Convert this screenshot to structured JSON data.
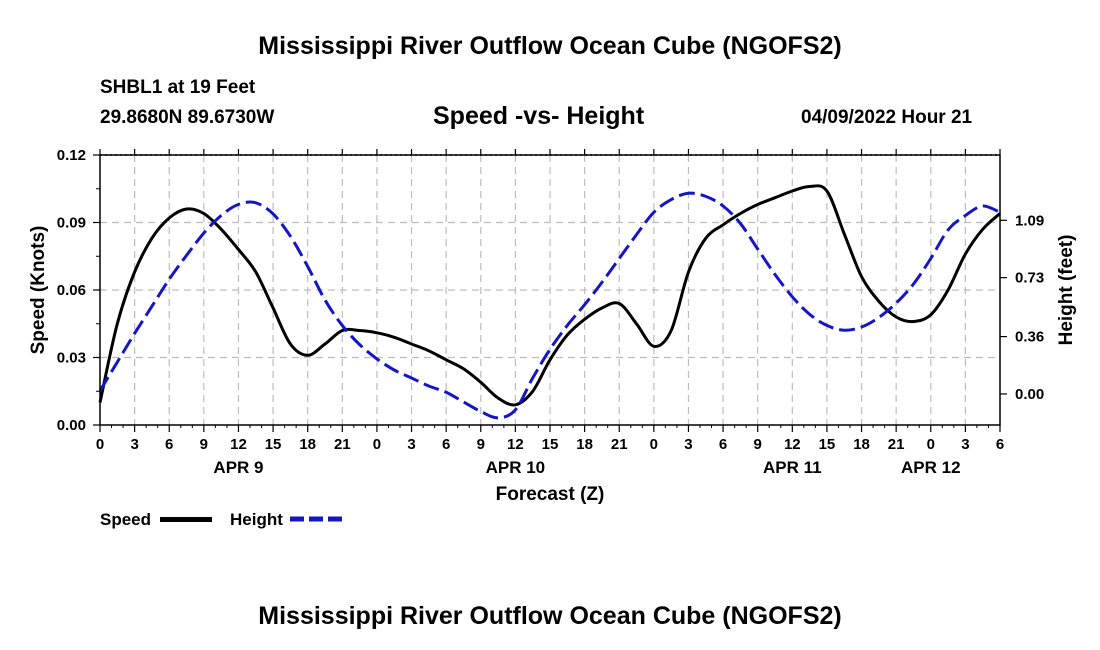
{
  "page": {
    "title": "Mississippi River Outflow Ocean Cube (NGOFS2)",
    "station": "SHBL1 at 19 Feet",
    "coords": "29.8680N  89.6730W",
    "subtitle": "Speed -vs- Height",
    "datetime": "04/09/2022 Hour 21",
    "footer_title": "Mississippi River Outflow Ocean Cube (NGOFS2)"
  },
  "legend": {
    "speed_label": "Speed",
    "height_label": "Height"
  },
  "colors": {
    "speed": "#000000",
    "height": "#1515c8",
    "grid": "#bdbdbd"
  },
  "chart_data": {
    "type": "line",
    "title": "Speed -vs- Height",
    "xlabel": "Forecast (Z)",
    "ylabel": "Speed (Knots)",
    "y2label": "Height (feet)",
    "xlim": [
      0,
      78
    ],
    "ylim": [
      0,
      0.12
    ],
    "y2lim": [
      -0.195,
      1.5
    ],
    "x_unit": "hours from 04/09 00Z",
    "x_ticks": [
      0,
      3,
      6,
      9,
      12,
      15,
      18,
      21,
      24,
      27,
      30,
      33,
      36,
      39,
      42,
      45,
      48,
      51,
      54,
      57,
      60,
      63,
      66,
      69,
      72,
      75,
      78
    ],
    "x_tick_labels": [
      "0",
      "3",
      "6",
      "9",
      "12",
      "15",
      "18",
      "21",
      "0",
      "3",
      "6",
      "9",
      "12",
      "15",
      "18",
      "21",
      "0",
      "3",
      "6",
      "9",
      "12",
      "15",
      "18",
      "21",
      "0",
      "3",
      "6"
    ],
    "day_labels": [
      {
        "label": "APR 9",
        "x": 12
      },
      {
        "label": "APR 10",
        "x": 36
      },
      {
        "label": "APR 11",
        "x": 60
      },
      {
        "label": "APR 12",
        "x": 72
      }
    ],
    "y_ticks": [
      0,
      0.03,
      0.06,
      0.09,
      0.12
    ],
    "y_tick_labels": [
      "0.00",
      "0.03",
      "0.06",
      "0.09",
      "0.12"
    ],
    "y2_ticks": [
      0,
      0.36,
      0.73,
      1.09
    ],
    "y2_tick_labels": [
      "0.00",
      "0.36",
      "0.73",
      "1.09"
    ],
    "series": [
      {
        "name": "Speed",
        "axis": "left",
        "style": "solid",
        "x": [
          0,
          1.5,
          3,
          4.5,
          6,
          7.5,
          9,
          10.5,
          12,
          13.5,
          15,
          16.5,
          18,
          19.5,
          21,
          22.5,
          24,
          25.5,
          27,
          28.5,
          30,
          31.5,
          33,
          34.5,
          36,
          37.5,
          39,
          40.5,
          42,
          43.5,
          45,
          46.5,
          48,
          49.5,
          51,
          52.5,
          54,
          55.5,
          57,
          58.5,
          60,
          61.5,
          63,
          64.5,
          66,
          67.5,
          69,
          70.5,
          72,
          73.5,
          75,
          76.5,
          78
        ],
        "values": [
          0.01,
          0.045,
          0.068,
          0.083,
          0.092,
          0.096,
          0.094,
          0.087,
          0.078,
          0.068,
          0.052,
          0.036,
          0.031,
          0.036,
          0.042,
          0.042,
          0.041,
          0.039,
          0.036,
          0.033,
          0.029,
          0.025,
          0.019,
          0.012,
          0.009,
          0.015,
          0.029,
          0.04,
          0.047,
          0.052,
          0.054,
          0.045,
          0.035,
          0.042,
          0.068,
          0.083,
          0.089,
          0.094,
          0.098,
          0.101,
          0.104,
          0.106,
          0.104,
          0.085,
          0.066,
          0.055,
          0.048,
          0.046,
          0.049,
          0.06,
          0.076,
          0.087,
          0.094
        ]
      },
      {
        "name": "Height",
        "axis": "right",
        "style": "dashed",
        "x": [
          0,
          1.5,
          3,
          4.5,
          6,
          7.5,
          9,
          10.5,
          12,
          13.5,
          15,
          16.5,
          18,
          19.5,
          21,
          22.5,
          24,
          25.5,
          27,
          28.5,
          30,
          31.5,
          33,
          34.5,
          36,
          37.5,
          39,
          40.5,
          42,
          43.5,
          45,
          46.5,
          48,
          49.5,
          51,
          52.5,
          54,
          55.5,
          57,
          58.5,
          60,
          61.5,
          63,
          64.5,
          66,
          67.5,
          69,
          70.5,
          72,
          73.5,
          75,
          76.5,
          78
        ],
        "values": [
          0.02,
          0.2,
          0.38,
          0.55,
          0.72,
          0.87,
          1.01,
          1.12,
          1.19,
          1.2,
          1.13,
          0.99,
          0.8,
          0.59,
          0.43,
          0.31,
          0.22,
          0.15,
          0.1,
          0.05,
          0.01,
          -0.05,
          -0.11,
          -0.15,
          -0.1,
          0.1,
          0.28,
          0.43,
          0.56,
          0.7,
          0.85,
          1.0,
          1.14,
          1.22,
          1.26,
          1.24,
          1.18,
          1.07,
          0.91,
          0.75,
          0.61,
          0.5,
          0.43,
          0.4,
          0.42,
          0.48,
          0.57,
          0.69,
          0.85,
          1.03,
          1.12,
          1.18,
          1.14
        ]
      }
    ],
    "legend": [
      "Speed",
      "Height"
    ],
    "grid": true
  }
}
